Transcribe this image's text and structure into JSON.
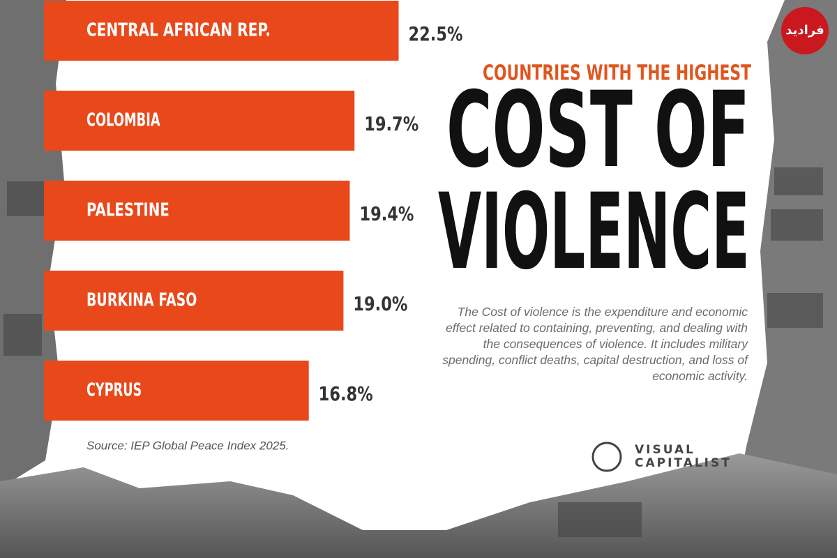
{
  "chart_data": {
    "type": "bar",
    "orientation": "horizontal",
    "subtitle": "COUNTRIES WITH THE HIGHEST",
    "title": [
      "COST OF",
      "VIOLENCE"
    ],
    "description": "The Cost of violence is the expenditure and economic effect related to containing, preventing, and dealing with the consequences of violence. It includes military spending, conflict deaths, capital destruction, and loss of economic activity.",
    "categories": [
      "CENTRAL AFRICAN REP.",
      "COLOMBIA",
      "PALESTINE",
      "BURKINA FASO",
      "CYPRUS"
    ],
    "values": [
      22.5,
      19.7,
      19.4,
      19.0,
      16.8
    ],
    "value_labels": [
      "22.5%",
      "19.7%",
      "19.4%",
      "19.0%",
      "16.8%"
    ],
    "color": "#e9481b",
    "source": "Source: IEP Global Peace Index 2025.",
    "brand": [
      "VISUAL",
      "CAPITALIST"
    ],
    "watermark": "فرادید"
  }
}
